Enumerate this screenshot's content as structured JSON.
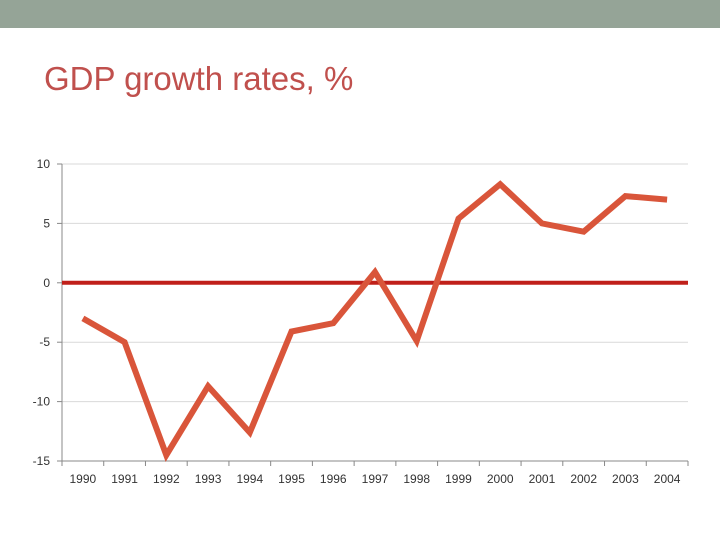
{
  "slide": {
    "title": "GDP growth rates, %"
  },
  "colors": {
    "top_bar": "#95a497",
    "title": "#c0504d",
    "series_line": "#d9553a",
    "zero_line": "#c0201a",
    "gridline": "#d9d9d9"
  },
  "chart_data": {
    "type": "line",
    "title": "GDP growth rates, %",
    "xlabel": "",
    "ylabel": "",
    "categories": [
      "1990",
      "1991",
      "1992",
      "1993",
      "1994",
      "1995",
      "1996",
      "1997",
      "1998",
      "1999",
      "2000",
      "2001",
      "2002",
      "2003",
      "2004"
    ],
    "series": [
      {
        "name": "GDP growth rate",
        "values": [
          -3.0,
          -5.0,
          -14.5,
          -8.7,
          -12.6,
          -4.1,
          -3.4,
          0.9,
          -4.9,
          5.4,
          8.3,
          5.0,
          4.3,
          7.3,
          7.0
        ]
      }
    ],
    "reference_line": {
      "value": 0,
      "label": ""
    },
    "ylim": [
      -15,
      10
    ],
    "yticks": [
      10,
      5,
      0,
      -5,
      -10,
      -15
    ],
    "ytick_labels": [
      "10",
      "5",
      "0",
      "-5",
      "-10",
      "-15"
    ],
    "grid": true,
    "legend": "none"
  }
}
